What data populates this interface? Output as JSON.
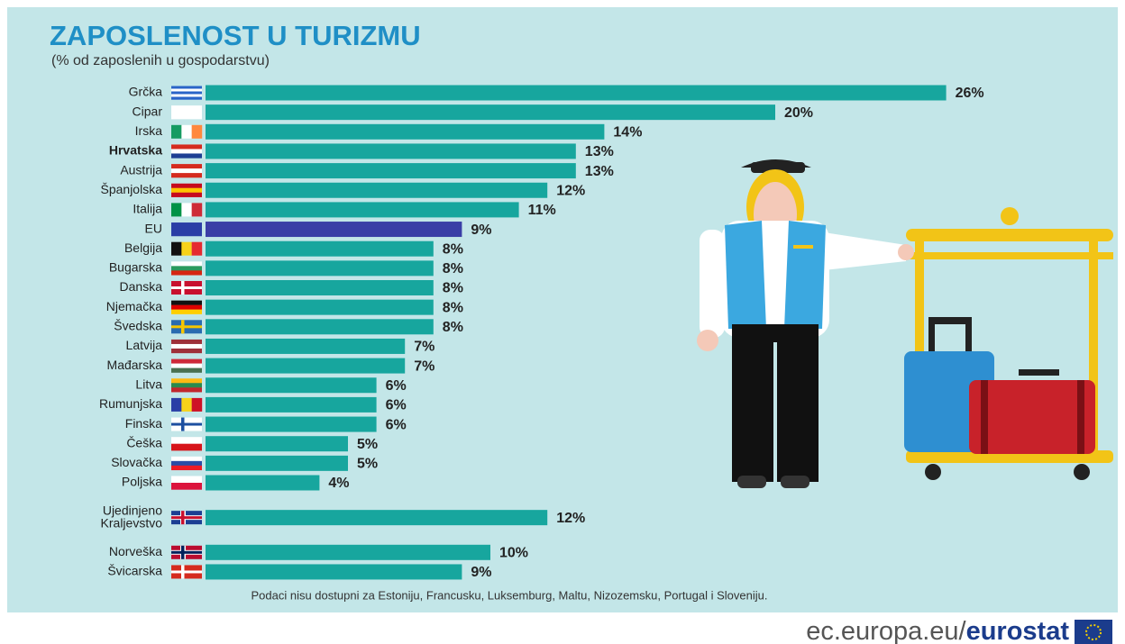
{
  "chart_data": {
    "type": "bar",
    "orientation": "horizontal",
    "title": "ZAPOSLENOST U TURIZMU",
    "subtitle": "(% od zaposlenih u gospodarstvu)",
    "categories": [
      "Grčka",
      "Cipar",
      "Irska",
      "Hrvatska",
      "Austrija",
      "Španjolska",
      "Italija",
      "EU",
      "Belgija",
      "Bugarska",
      "Danska",
      "Njemačka",
      "Švedska",
      "Latvija",
      "Mađarska",
      "Litva",
      "Rumunjska",
      "Finska",
      "Češka",
      "Slovačka",
      "Poljska",
      "Ujedinjeno Kraljevstvo",
      "Norveška",
      "Švicarska"
    ],
    "values": [
      26,
      20,
      14,
      13,
      13,
      12,
      11,
      9,
      8,
      8,
      8,
      8,
      8,
      7,
      7,
      6,
      6,
      6,
      5,
      5,
      4,
      12,
      10,
      9
    ],
    "value_labels": [
      "26%",
      "20%",
      "14%",
      "13%",
      "13%",
      "12%",
      "11%",
      "9%",
      "8%",
      "8%",
      "8%",
      "8%",
      "8%",
      "7%",
      "7%",
      "6%",
      "6%",
      "6%",
      "5%",
      "5%",
      "4%",
      "12%",
      "10%",
      "9%"
    ],
    "bar_colors": [
      "#17a69e",
      "#17a69e",
      "#17a69e",
      "#17a69e",
      "#17a69e",
      "#17a69e",
      "#17a69e",
      "#3a3ea6",
      "#17a69e",
      "#17a69e",
      "#17a69e",
      "#17a69e",
      "#17a69e",
      "#17a69e",
      "#17a69e",
      "#17a69e",
      "#17a69e",
      "#17a69e",
      "#17a69e",
      "#17a69e",
      "#17a69e",
      "#17a69e",
      "#17a69e",
      "#17a69e"
    ],
    "footnote": "Podaci nisu dostupni za Estoniju, Francusku, Luksemburg, Maltu, Nizozemsku, Portugal i Sloveniju.",
    "source_prefix": "ec.europa.eu/",
    "source_brand": "eurostat"
  }
}
